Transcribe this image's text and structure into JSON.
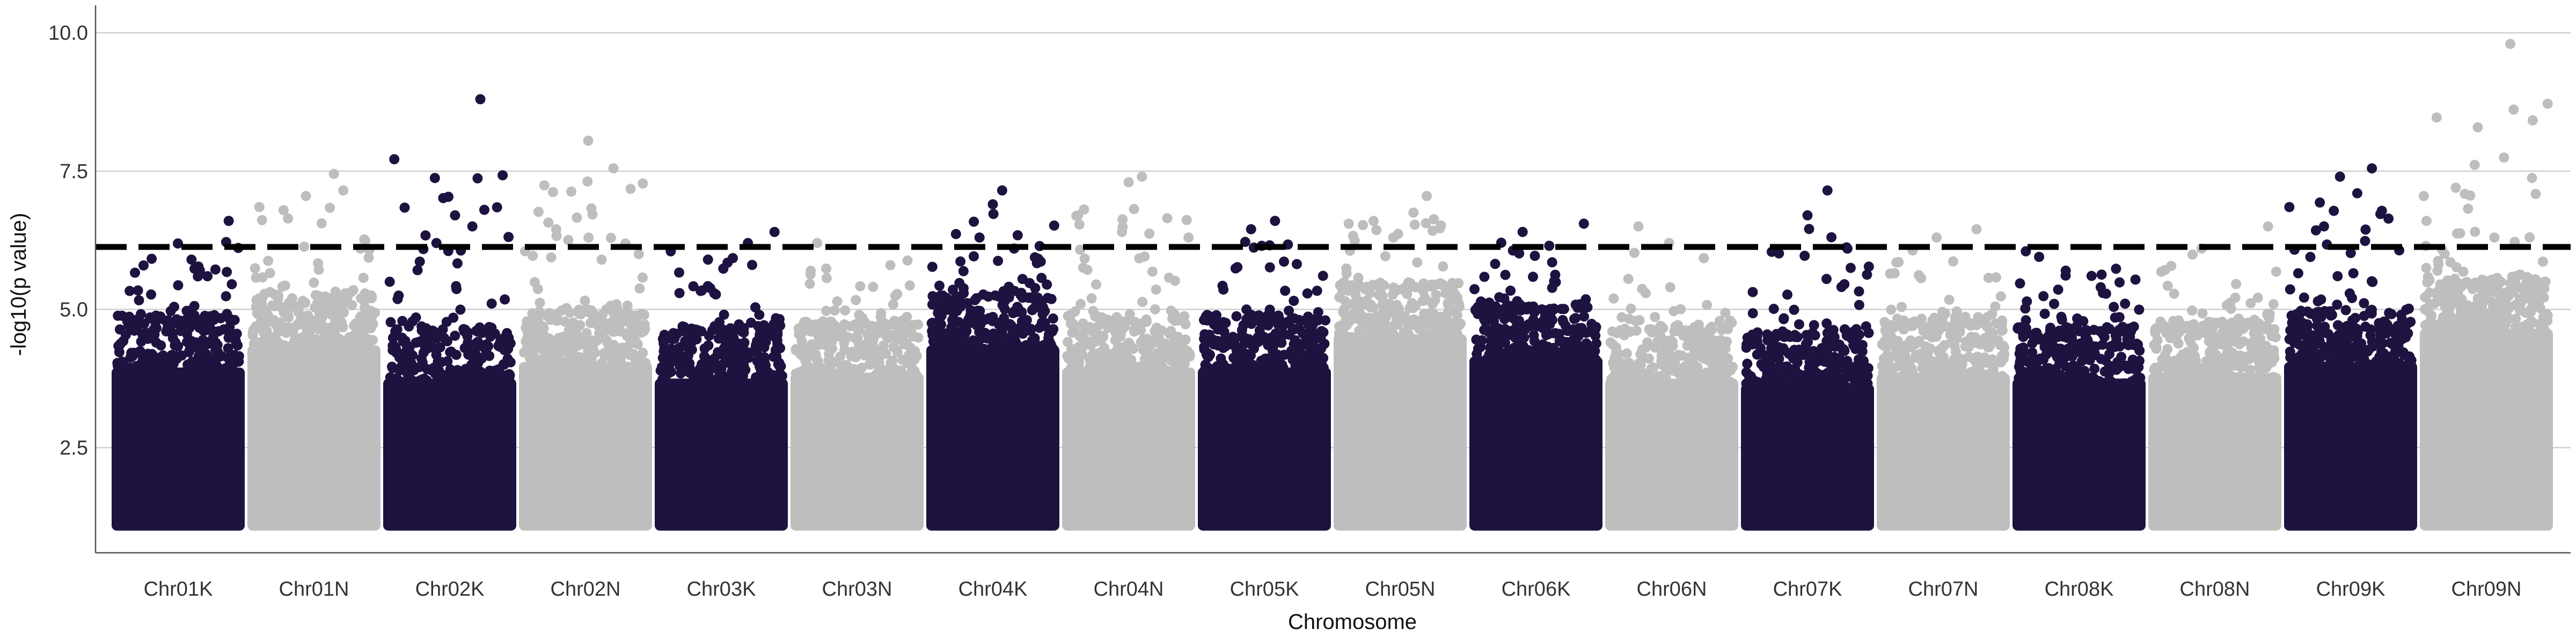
{
  "colors": {
    "dark": "#1e1240",
    "light": "#bebebe",
    "grid": "#d0d0d0",
    "threshold": "#000000",
    "axis": "#555555"
  },
  "chart_data": {
    "type": "scatter",
    "subtype": "manhattan",
    "title": "",
    "xlabel": "Chromosome",
    "ylabel": "-log10(p value)",
    "ylim": [
      0.6,
      10.4
    ],
    "yticks": [
      2.5,
      5.0,
      7.5,
      10.0
    ],
    "ytick_labels": [
      "2.5",
      "5.0",
      "7.5",
      "10.0"
    ],
    "grid": "horizontal major gridlines",
    "legend": "none",
    "threshold": {
      "value": 6.13,
      "style": "dashed"
    },
    "point_color_by_chromosome": [
      "dark",
      "light",
      "dark",
      "light",
      "dark",
      "light",
      "dark",
      "light",
      "dark",
      "light",
      "dark",
      "light",
      "dark",
      "light",
      "dark",
      "light",
      "dark",
      "light"
    ],
    "chromosomes": [
      {
        "label": "Chr01K",
        "dense_top": 4.2,
        "tail_max": 6.6,
        "peaks": [
          [
            0.88,
            6.6
          ],
          [
            0.6,
            5.9
          ],
          [
            0.72,
            5.6
          ]
        ]
      },
      {
        "label": "Chr01N",
        "dense_top": 4.6,
        "tail_max": 7.45,
        "peaks": [
          [
            0.65,
            7.45
          ],
          [
            0.72,
            7.15
          ],
          [
            0.44,
            7.05
          ],
          [
            0.09,
            6.85
          ],
          [
            0.85,
            6.1
          ]
        ]
      },
      {
        "label": "Chr02K",
        "dense_top": 4.0,
        "tail_max": 8.8,
        "peaks": [
          [
            0.73,
            8.8
          ],
          [
            0.76,
            6.8
          ],
          [
            0.54,
            6.7
          ],
          [
            0.67,
            6.5
          ],
          [
            0.4,
            6.2
          ]
        ]
      },
      {
        "label": "Chr02N",
        "dense_top": 4.3,
        "tail_max": 8.05,
        "peaks": [
          [
            0.52,
            8.05
          ],
          [
            0.71,
            7.55
          ],
          [
            0.28,
            6.45
          ],
          [
            0.9,
            6.0
          ]
        ]
      },
      {
        "label": "Chr03K",
        "dense_top": 4.0,
        "tail_max": 6.4,
        "peaks": [
          [
            0.9,
            6.4
          ],
          [
            0.7,
            6.2
          ],
          [
            0.12,
            6.05
          ],
          [
            0.4,
            5.9
          ]
        ]
      },
      {
        "label": "Chr03N",
        "dense_top": 4.1,
        "tail_max": 6.2,
        "peaks": [
          [
            0.2,
            6.2
          ],
          [
            0.75,
            5.8
          ]
        ]
      },
      {
        "label": "Chr04K",
        "dense_top": 4.6,
        "tail_max": 7.15,
        "peaks": [
          [
            0.57,
            7.15
          ],
          [
            0.5,
            6.9
          ],
          [
            0.4,
            6.3
          ],
          [
            0.66,
            6.1
          ]
        ]
      },
      {
        "label": "Chr04N",
        "dense_top": 4.2,
        "tail_max": 7.4,
        "peaks": [
          [
            0.6,
            7.4
          ],
          [
            0.5,
            7.3
          ],
          [
            0.12,
            6.7
          ],
          [
            0.45,
            6.4
          ]
        ]
      },
      {
        "label": "Chr05K",
        "dense_top": 4.2,
        "tail_max": 6.6,
        "peaks": [
          [
            0.58,
            6.6
          ],
          [
            0.4,
            6.45
          ],
          [
            0.48,
            6.15
          ]
        ]
      },
      {
        "label": "Chr05N",
        "dense_top": 4.8,
        "tail_max": 7.05,
        "peaks": [
          [
            0.7,
            7.05
          ],
          [
            0.6,
            6.75
          ],
          [
            0.3,
            6.6
          ],
          [
            0.45,
            6.3
          ]
        ]
      },
      {
        "label": "Chr06K",
        "dense_top": 4.4,
        "tail_max": 6.55,
        "peaks": [
          [
            0.86,
            6.55
          ],
          [
            0.4,
            6.4
          ],
          [
            0.6,
            6.15
          ]
        ]
      },
      {
        "label": "Chr06N",
        "dense_top": 4.0,
        "tail_max": 6.5,
        "peaks": [
          [
            0.25,
            6.5
          ],
          [
            0.48,
            6.2
          ]
        ]
      },
      {
        "label": "Chr07K",
        "dense_top": 3.9,
        "tail_max": 7.15,
        "peaks": [
          [
            0.65,
            7.15
          ],
          [
            0.5,
            6.7
          ],
          [
            0.8,
            6.1
          ]
        ]
      },
      {
        "label": "Chr07N",
        "dense_top": 4.1,
        "tail_max": 6.45,
        "peaks": [
          [
            0.75,
            6.45
          ],
          [
            0.45,
            6.3
          ]
        ]
      },
      {
        "label": "Chr08K",
        "dense_top": 4.0,
        "tail_max": 6.05,
        "peaks": [
          [
            0.1,
            6.05
          ],
          [
            0.2,
            5.95
          ],
          [
            0.4,
            5.7
          ]
        ]
      },
      {
        "label": "Chr08N",
        "dense_top": 4.1,
        "tail_max": 6.5,
        "peaks": [
          [
            0.9,
            6.5
          ],
          [
            0.4,
            6.1
          ]
        ]
      },
      {
        "label": "Chr09K",
        "dense_top": 4.3,
        "tail_max": 7.55,
        "peaks": [
          [
            0.66,
            7.55
          ],
          [
            0.42,
            7.4
          ],
          [
            0.55,
            7.1
          ],
          [
            0.04,
            6.85
          ],
          [
            0.3,
            6.5
          ]
        ]
      },
      {
        "label": "Chr09N",
        "dense_top": 4.9,
        "tail_max": 9.8,
        "peaks": [
          [
            0.68,
            9.8
          ],
          [
            0.27,
            7.2
          ],
          [
            0.03,
            7.05
          ],
          [
            0.05,
            6.6
          ],
          [
            0.56,
            6.3
          ]
        ]
      }
    ]
  }
}
